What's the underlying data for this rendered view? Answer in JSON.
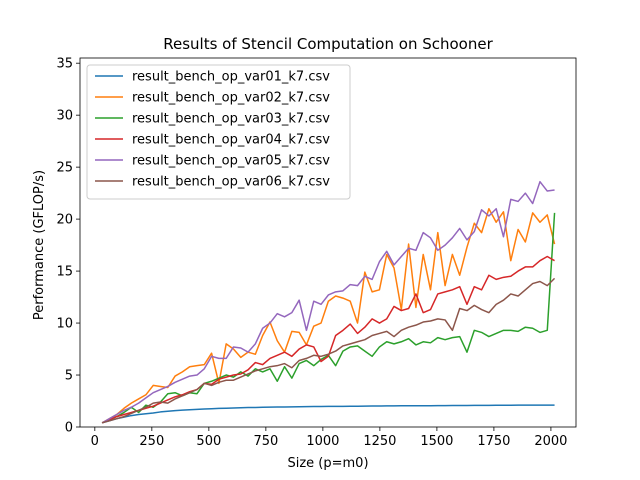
{
  "chart_data": {
    "type": "line",
    "title": "Results of Stencil Computation on Schooner",
    "xlabel": "Size (p=m0)",
    "ylabel": "Performance (GFLOP/s)",
    "xlim": [
      -65,
      2110
    ],
    "ylim": [
      0,
      35.5
    ],
    "xticks": [
      0,
      250,
      500,
      750,
      1000,
      1250,
      1500,
      1750,
      2000
    ],
    "yticks": [
      0,
      5,
      10,
      15,
      20,
      25,
      30,
      35
    ],
    "legend": "top-left",
    "x": [
      32,
      64,
      96,
      128,
      160,
      192,
      224,
      256,
      288,
      320,
      352,
      384,
      416,
      448,
      480,
      512,
      544,
      576,
      608,
      640,
      672,
      704,
      736,
      768,
      800,
      832,
      864,
      896,
      928,
      960,
      992,
      1024,
      1056,
      1088,
      1120,
      1152,
      1184,
      1216,
      1248,
      1280,
      1312,
      1344,
      1376,
      1408,
      1440,
      1472,
      1504,
      1536,
      1568,
      1600,
      1632,
      1664,
      1696,
      1728,
      1760,
      1792,
      1824,
      1856,
      1888,
      1920,
      1952,
      1984,
      2016
    ],
    "series": [
      {
        "name": "result_bench_op_var01_k7.csv",
        "color": "#1f77b4",
        "values": [
          0.4,
          0.6,
          0.8,
          0.95,
          1.1,
          1.2,
          1.28,
          1.35,
          1.45,
          1.52,
          1.58,
          1.62,
          1.66,
          1.7,
          1.73,
          1.76,
          1.79,
          1.81,
          1.83,
          1.85,
          1.87,
          1.88,
          1.9,
          1.91,
          1.92,
          1.93,
          1.94,
          1.95,
          1.96,
          1.97,
          1.97,
          1.98,
          1.99,
          1.99,
          2.0,
          2.0,
          2.01,
          2.02,
          2.02,
          2.03,
          2.03,
          2.04,
          2.04,
          2.05,
          2.05,
          2.05,
          2.06,
          2.06,
          2.07,
          2.07,
          2.07,
          2.08,
          2.08,
          2.08,
          2.09,
          2.09,
          2.09,
          2.1,
          2.1,
          2.1,
          2.1,
          2.11,
          2.11
        ]
      },
      {
        "name": "result_bench_op_var02_k7.csv",
        "color": "#ff7f0e",
        "values": [
          0.4,
          0.8,
          1.2,
          1.8,
          2.3,
          2.7,
          3.1,
          4.0,
          3.9,
          3.8,
          4.9,
          5.3,
          5.8,
          5.9,
          6.0,
          7.1,
          4.2,
          8.0,
          7.5,
          6.7,
          7.2,
          7.0,
          8.8,
          10.1,
          8.3,
          7.2,
          9.2,
          9.1,
          7.9,
          9.7,
          10.0,
          12.1,
          12.6,
          12.4,
          12.1,
          10.0,
          14.9,
          13.0,
          13.2,
          16.6,
          15.3,
          11.3,
          17.6,
          11.5,
          16.6,
          13.2,
          18.7,
          13.6,
          16.6,
          14.6,
          17.3,
          19.6,
          18.7,
          21.0,
          19.7,
          20.7,
          16.0,
          19.0,
          17.8,
          20.6,
          19.7,
          20.4,
          17.6
        ]
      },
      {
        "name": "result_bench_op_var03_k7.csv",
        "color": "#2ca02c",
        "values": [
          0.4,
          0.7,
          1.0,
          1.4,
          1.9,
          1.4,
          2.1,
          1.9,
          2.4,
          3.2,
          3.3,
          3.0,
          3.3,
          3.2,
          4.2,
          4.4,
          4.7,
          5.0,
          4.8,
          5.3,
          4.9,
          5.6,
          5.3,
          5.6,
          4.4,
          5.8,
          4.7,
          6.1,
          6.4,
          5.9,
          6.5,
          6.9,
          5.9,
          7.3,
          7.7,
          7.8,
          7.3,
          6.8,
          7.7,
          8.2,
          8.0,
          8.2,
          8.5,
          7.9,
          8.2,
          8.1,
          8.6,
          8.4,
          8.6,
          8.7,
          7.2,
          9.3,
          9.1,
          8.7,
          9.0,
          9.3,
          9.3,
          9.2,
          9.6,
          9.5,
          9.1,
          9.3,
          20.6
        ]
      },
      {
        "name": "result_bench_op_var04_k7.csv",
        "color": "#d62728",
        "values": [
          0.4,
          0.7,
          1.0,
          1.2,
          1.4,
          1.6,
          1.8,
          2.0,
          2.3,
          2.6,
          2.9,
          3.1,
          3.4,
          3.6,
          4.2,
          4.1,
          4.6,
          4.8,
          5.0,
          5.1,
          5.5,
          6.2,
          6.0,
          6.6,
          6.9,
          7.2,
          6.8,
          7.5,
          7.9,
          7.7,
          6.3,
          6.8,
          8.8,
          9.3,
          9.9,
          9.0,
          9.6,
          10.4,
          10.0,
          10.4,
          11.6,
          11.2,
          11.4,
          12.8,
          11.0,
          11.3,
          12.8,
          13.0,
          13.2,
          13.5,
          11.8,
          13.5,
          13.2,
          14.6,
          14.2,
          14.4,
          14.5,
          15.0,
          15.4,
          15.4,
          16.0,
          16.4,
          16.0
        ]
      },
      {
        "name": "result_bench_op_var05_k7.csv",
        "color": "#9467bd",
        "values": [
          0.4,
          0.8,
          1.2,
          1.6,
          1.9,
          2.3,
          2.8,
          3.3,
          3.6,
          3.9,
          4.3,
          4.6,
          4.9,
          5.0,
          5.6,
          6.8,
          6.6,
          6.6,
          7.7,
          7.6,
          7.2,
          8.0,
          9.5,
          10.0,
          10.9,
          10.6,
          11.0,
          12.2,
          9.3,
          12.1,
          11.8,
          12.7,
          13.0,
          13.1,
          13.7,
          13.6,
          14.5,
          14.2,
          15.9,
          16.9,
          15.6,
          16.4,
          17.2,
          17.0,
          18.7,
          18.2,
          17.0,
          17.5,
          18.2,
          19.1,
          18.0,
          18.8,
          20.9,
          20.3,
          21.0,
          18.3,
          21.9,
          21.7,
          22.5,
          21.5,
          23.6,
          22.7,
          22.8
        ]
      },
      {
        "name": "result_bench_op_var06_k7.csv",
        "color": "#8c564b",
        "values": [
          0.4,
          0.6,
          0.8,
          1.0,
          1.3,
          1.6,
          1.9,
          2.3,
          2.4,
          2.3,
          2.7,
          3.0,
          3.3,
          3.6,
          4.2,
          4.0,
          4.3,
          4.5,
          4.5,
          4.8,
          5.1,
          5.4,
          5.6,
          5.8,
          5.9,
          6.1,
          5.7,
          6.4,
          6.6,
          6.9,
          6.8,
          7.0,
          7.3,
          7.8,
          8.0,
          8.2,
          8.4,
          8.8,
          9.0,
          9.2,
          8.7,
          9.3,
          9.6,
          9.8,
          10.1,
          10.2,
          10.4,
          10.3,
          9.3,
          11.4,
          11.2,
          11.7,
          11.3,
          11.0,
          11.8,
          12.2,
          12.8,
          12.6,
          13.2,
          13.8,
          14.0,
          13.6,
          14.3
        ]
      }
    ]
  }
}
